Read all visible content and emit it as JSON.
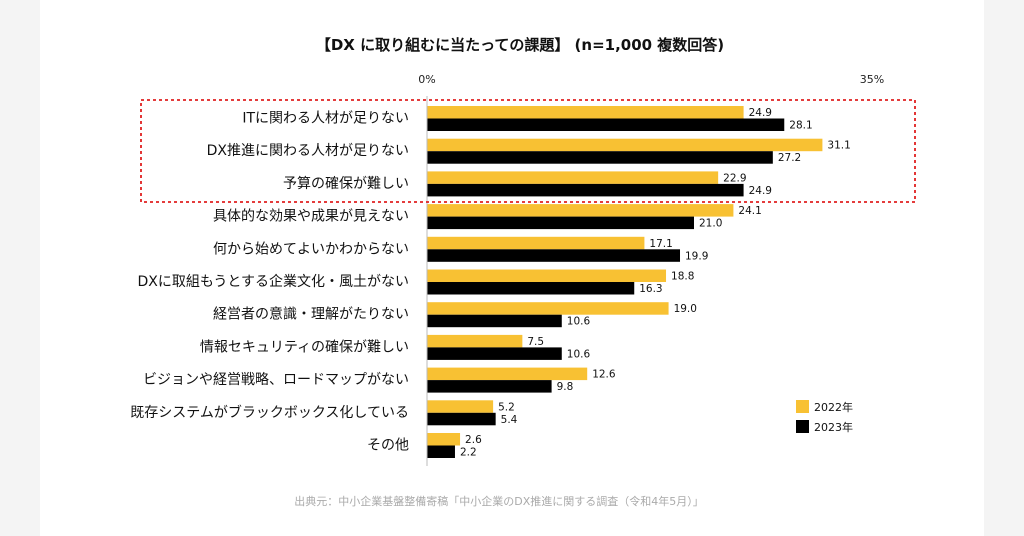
{
  "chart_data": {
    "type": "bar",
    "orientation": "horizontal",
    "title": "【DX に取り組むに当たっての課題】 (n=1,000 複数回答)",
    "axis": {
      "min_label": "0%",
      "max_label": "35%",
      "xlim": [
        0,
        35
      ],
      "unit": "%"
    },
    "categories": [
      "ITに関わる人材が足りない",
      "DX推進に関わる人材が足りない",
      "予算の確保が難しい",
      "具体的な効果や成果が見えない",
      "何から始めてよいかわからない",
      "DXに取組もうとする企業文化・風土がない",
      "経営者の意識・理解がたりない",
      "情報セキュリティの確保が難しい",
      "ビジョンや経営戦略、ロードマップがない",
      "既存システムがブラックボックス化している",
      "その他"
    ],
    "series": [
      {
        "name": "2022年",
        "color": "#f8c133",
        "values": [
          24.9,
          31.1,
          22.9,
          24.1,
          17.1,
          18.8,
          19.0,
          7.5,
          12.6,
          5.2,
          2.6
        ]
      },
      {
        "name": "2023年",
        "color": "#000000",
        "values": [
          28.1,
          27.2,
          24.9,
          21.0,
          19.9,
          16.3,
          10.6,
          10.6,
          9.8,
          5.4,
          2.2
        ]
      }
    ],
    "highlight": {
      "categories": [
        0,
        1,
        2
      ],
      "style": "dotted-red-box",
      "color": "#e02020"
    },
    "legend": "bottom-right",
    "source": "出典元：中小企業基盤整備寄稿「中小企業のDX推進に関する調査（令和4年5月）」"
  }
}
